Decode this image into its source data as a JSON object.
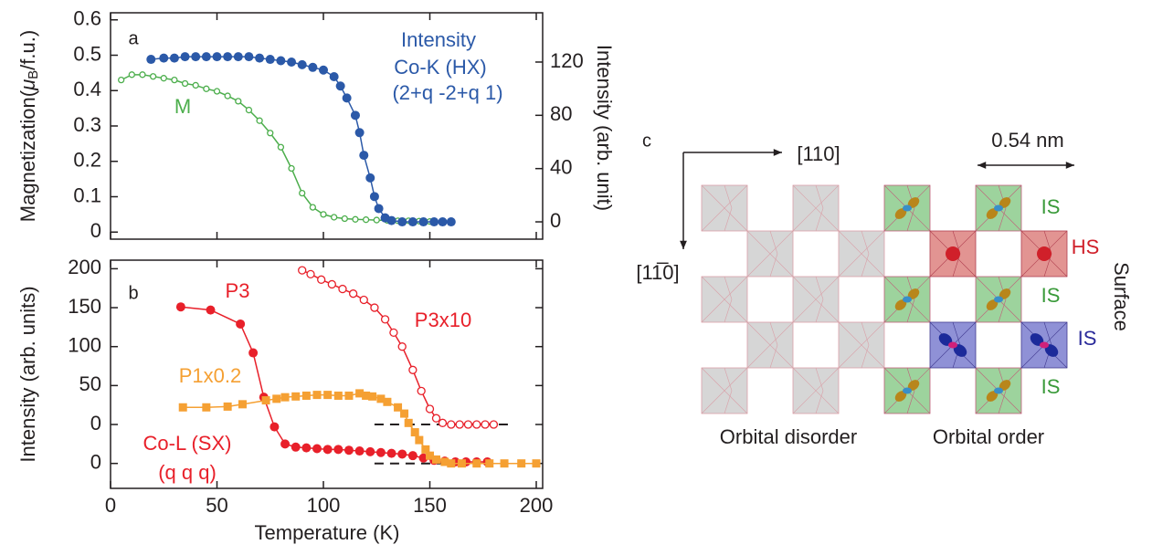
{
  "chart_data": [
    {
      "type": "line",
      "panel_label": "a",
      "y_label": {
        "prefix": "Magnetization(",
        "symbol": "μ",
        "subscript": "B",
        "suffix": "/f.u.)"
      },
      "y2_label": "Intensity (arb. unit)",
      "xlim": [
        0,
        203
      ],
      "xticks": [
        0,
        50,
        100,
        150,
        200
      ],
      "xtick_labels": false,
      "ylim": [
        -0.02,
        0.62
      ],
      "yticks": [
        0.0,
        0.1,
        0.2,
        0.3,
        0.4,
        0.5,
        0.6
      ],
      "y2lim": [
        -13,
        157
      ],
      "y2ticks": [
        0,
        40,
        80,
        120
      ],
      "series": [
        {
          "name": "M",
          "color": "#4cae4c",
          "marker": "open-circle",
          "x": [
            5,
            10,
            15,
            20,
            25,
            30,
            35,
            40,
            45,
            50,
            55,
            60,
            65,
            70,
            75,
            80,
            85,
            90,
            95,
            100,
            105,
            110,
            115,
            120,
            125,
            130,
            135,
            140,
            145,
            150
          ],
          "values": [
            0.43,
            0.445,
            0.445,
            0.44,
            0.435,
            0.43,
            0.42,
            0.415,
            0.405,
            0.398,
            0.385,
            0.37,
            0.345,
            0.315,
            0.28,
            0.24,
            0.18,
            0.11,
            0.07,
            0.05,
            0.042,
            0.038,
            0.036,
            0.035,
            0.034,
            0.033,
            0.032,
            0.032,
            0.031,
            0.03
          ]
        },
        {
          "name": "Intensity",
          "annotation_lines": [
            "Co-K (HX)",
            "(2+q -2+q 1)"
          ],
          "color": "#2b59a8",
          "marker": "filled-circle",
          "axis": "y2",
          "x": [
            19,
            25,
            30,
            35,
            40,
            45,
            50,
            55,
            60,
            65,
            70,
            75,
            80,
            85,
            90,
            95,
            100,
            105,
            108,
            111,
            115,
            117,
            119,
            122,
            124,
            126,
            129,
            132,
            137,
            142,
            147,
            152,
            156,
            160
          ],
          "values": [
            122,
            123,
            123,
            124,
            124,
            124,
            124,
            124,
            124,
            124,
            123,
            122,
            121,
            120,
            118,
            116,
            114,
            109,
            102,
            93,
            80,
            67,
            50,
            33,
            19,
            10,
            3,
            1,
            0,
            0,
            0,
            0,
            0,
            0
          ]
        }
      ]
    },
    {
      "type": "line",
      "panel_label": "b",
      "y_label": "Intensity (arb. units)",
      "x_label": "Temperature (K)",
      "xlim": [
        0,
        203
      ],
      "xticks": [
        0,
        50,
        100,
        150,
        200
      ],
      "xtick_labels": true,
      "ylim": [
        -82,
        211
      ],
      "yticks": [
        {
          "value": -50,
          "label": "0"
        },
        0,
        50,
        100,
        150,
        200
      ],
      "baselines": [
        {
          "value": 0,
          "from": 124,
          "to": 188
        },
        {
          "value": -50,
          "from": 124,
          "to": 159
        }
      ],
      "series": [
        {
          "name": "P3",
          "annotation_lines": [
            "Co-L (SX)",
            "(q q q)"
          ],
          "color": "#e8202a",
          "marker": "filled-circle",
          "x": [
            33,
            47,
            61,
            67,
            72,
            77,
            82,
            87,
            92,
            97,
            102,
            107,
            112,
            117,
            122,
            127,
            132,
            137,
            142,
            147,
            152,
            157,
            162,
            167,
            172,
            177
          ],
          "values": [
            151,
            147,
            129,
            92,
            35,
            -3,
            -25,
            -29,
            -30,
            -31,
            -32,
            -32,
            -33,
            -34,
            -35,
            -36,
            -37,
            -38,
            -40,
            -43,
            -46,
            -47,
            -48,
            -48,
            -48,
            -48
          ]
        },
        {
          "name": "P1x0.2",
          "color": "#f5a033",
          "marker": "square",
          "x": [
            34,
            45,
            55,
            62,
            73,
            78,
            82,
            87,
            92,
            97,
            102,
            107,
            112,
            117,
            120,
            123,
            127,
            130,
            135,
            138,
            140,
            143,
            145,
            148,
            150,
            153,
            157,
            160,
            165,
            172,
            178,
            185,
            193,
            200
          ],
          "values": [
            22,
            22,
            23,
            26,
            31,
            33,
            35,
            36,
            37,
            38,
            38,
            37,
            37,
            40,
            37,
            36,
            33,
            29,
            22,
            14,
            2,
            -10,
            -20,
            -32,
            -40,
            -45,
            -48,
            -50,
            -50,
            -50,
            -50,
            -50,
            -50,
            -50
          ]
        },
        {
          "name": "P3x10",
          "color": "#e8202a",
          "marker": "open-circle",
          "x": [
            90,
            94,
            99,
            104,
            109,
            114,
            119,
            124,
            129,
            133,
            137,
            142,
            146,
            150,
            153,
            156,
            160,
            164,
            168,
            172,
            176,
            180
          ],
          "values": [
            198,
            193,
            186,
            180,
            174,
            168,
            160,
            150,
            135,
            118,
            100,
            70,
            43,
            20,
            8,
            2,
            0,
            0,
            0,
            0,
            0,
            0
          ]
        }
      ]
    }
  ],
  "diagram": {
    "panel_label": "c",
    "direction_x": "[110]",
    "direction_y": "[11̅0]",
    "scale": "0.54 nm",
    "site_labels": [
      "IS",
      "HS",
      "IS",
      "IS",
      "IS"
    ],
    "surface": "Surface",
    "captions": [
      "Orbital disorder",
      "Orbital order"
    ]
  }
}
